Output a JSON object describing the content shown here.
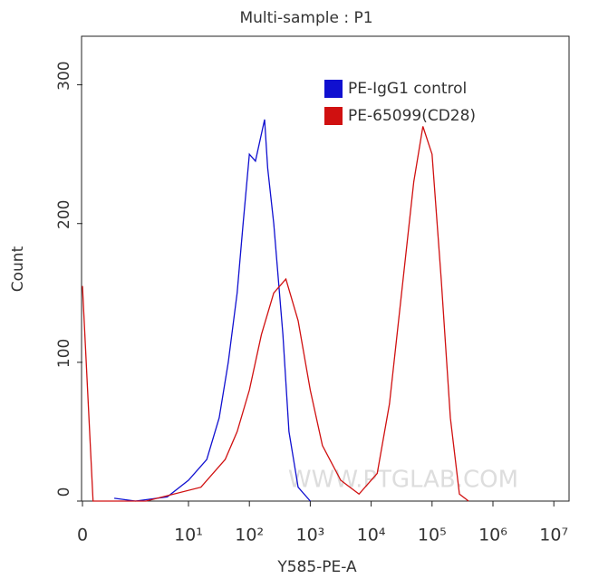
{
  "chart_data": {
    "type": "line",
    "title": "Multi-sample : P1",
    "xlabel": "Y585-PE-A",
    "ylabel": "Count",
    "xscale": "biexponential",
    "xlim": [
      0,
      17782794
    ],
    "ylim": [
      0,
      335
    ],
    "xticks": [
      0,
      {
        "value": 10,
        "label": "10¹"
      },
      {
        "value": 100,
        "label": "10²"
      },
      {
        "value": 1000,
        "label": "10³"
      },
      {
        "value": 10000,
        "label": "10⁴"
      },
      {
        "value": 100000,
        "label": "10⁵"
      },
      {
        "value": 1000000,
        "label": "10⁶"
      },
      {
        "value": 10000000,
        "label": "10⁷"
      }
    ],
    "yticks": [
      0,
      100,
      200,
      300
    ],
    "legend": "upper right",
    "watermark": "WWW.PTGLAB.COM",
    "series": [
      {
        "name": "PE-IgG1 control",
        "color": "#1010d0",
        "x": [
          3,
          5,
          8,
          10,
          20,
          32,
          45,
          63,
          79,
          100,
          126,
          178,
          200,
          251,
          355,
          447,
          631,
          1000
        ],
        "values": [
          2,
          0,
          3,
          15,
          30,
          60,
          100,
          150,
          200,
          250,
          245,
          275,
          240,
          200,
          120,
          50,
          10,
          0
        ]
      },
      {
        "name": "PE-65099(CD28)",
        "color": "#d01010",
        "x": [
          0,
          1,
          6,
          16,
          40,
          63,
          100,
          158,
          251,
          398,
          631,
          1000,
          1585,
          3162,
          6310,
          12589,
          19953,
          31623,
          50119,
          70795,
          100000,
          141254,
          199526,
          281838,
          398107
        ],
        "values": [
          155,
          0,
          0,
          10,
          30,
          50,
          80,
          120,
          150,
          160,
          130,
          80,
          40,
          15,
          5,
          20,
          70,
          150,
          230,
          270,
          250,
          160,
          60,
          5,
          0
        ]
      }
    ]
  }
}
